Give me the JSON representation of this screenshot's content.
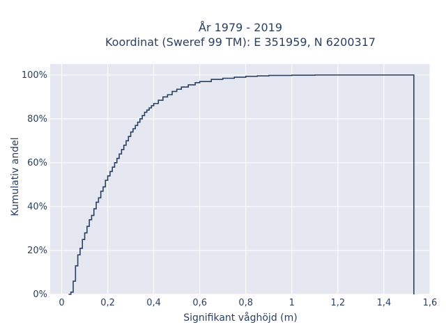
{
  "chart_data": {
    "type": "line",
    "title_lines": [
      "År 1979 - 2019",
      "Koordinat (Sweref 99 TM): E 351959, N 6200317"
    ],
    "xlabel": "Signifikant våghöjd (m)",
    "ylabel": "Kumulativ andel",
    "xlim": [
      -0.05,
      1.6
    ],
    "ylim": [
      0,
      1.05
    ],
    "x_ticks": [
      0,
      0.2,
      0.4,
      0.6,
      0.8,
      1.0,
      1.2,
      1.4,
      1.6
    ],
    "x_tick_labels": [
      "0",
      "0,2",
      "0,4",
      "0,6",
      "0,8",
      "1",
      "1,2",
      "1,4",
      "1,6"
    ],
    "y_ticks": [
      0,
      0.2,
      0.4,
      0.6,
      0.8,
      1.0
    ],
    "y_tick_labels": [
      "0%",
      "20%",
      "40%",
      "60%",
      "80%",
      "100%"
    ],
    "grid": true,
    "background_color": "#e5e8f0",
    "line_color": "#2a3f5f",
    "series": [
      {
        "step": "hv",
        "x": [
          0.03,
          0.04,
          0.05,
          0.06,
          0.07,
          0.08,
          0.09,
          0.1,
          0.11,
          0.12,
          0.13,
          0.14,
          0.15,
          0.16,
          0.17,
          0.18,
          0.19,
          0.2,
          0.21,
          0.22,
          0.23,
          0.24,
          0.25,
          0.26,
          0.27,
          0.28,
          0.29,
          0.3,
          0.31,
          0.32,
          0.33,
          0.34,
          0.35,
          0.36,
          0.37,
          0.38,
          0.39,
          0.4,
          0.42,
          0.44,
          0.46,
          0.48,
          0.5,
          0.52,
          0.55,
          0.58,
          0.6,
          0.65,
          0.7,
          0.75,
          0.8,
          0.85,
          0.9,
          1.0,
          1.1,
          1.2,
          1.53,
          1.53
        ],
        "y": [
          0.0,
          0.01,
          0.06,
          0.13,
          0.18,
          0.21,
          0.25,
          0.28,
          0.31,
          0.34,
          0.36,
          0.39,
          0.42,
          0.44,
          0.47,
          0.49,
          0.52,
          0.54,
          0.56,
          0.58,
          0.6,
          0.62,
          0.64,
          0.66,
          0.68,
          0.7,
          0.72,
          0.74,
          0.755,
          0.77,
          0.785,
          0.8,
          0.815,
          0.83,
          0.84,
          0.85,
          0.86,
          0.87,
          0.885,
          0.9,
          0.91,
          0.925,
          0.935,
          0.945,
          0.955,
          0.965,
          0.97,
          0.98,
          0.985,
          0.99,
          0.994,
          0.996,
          0.998,
          0.999,
          1.0,
          1.0,
          1.0,
          0.0
        ]
      }
    ]
  }
}
